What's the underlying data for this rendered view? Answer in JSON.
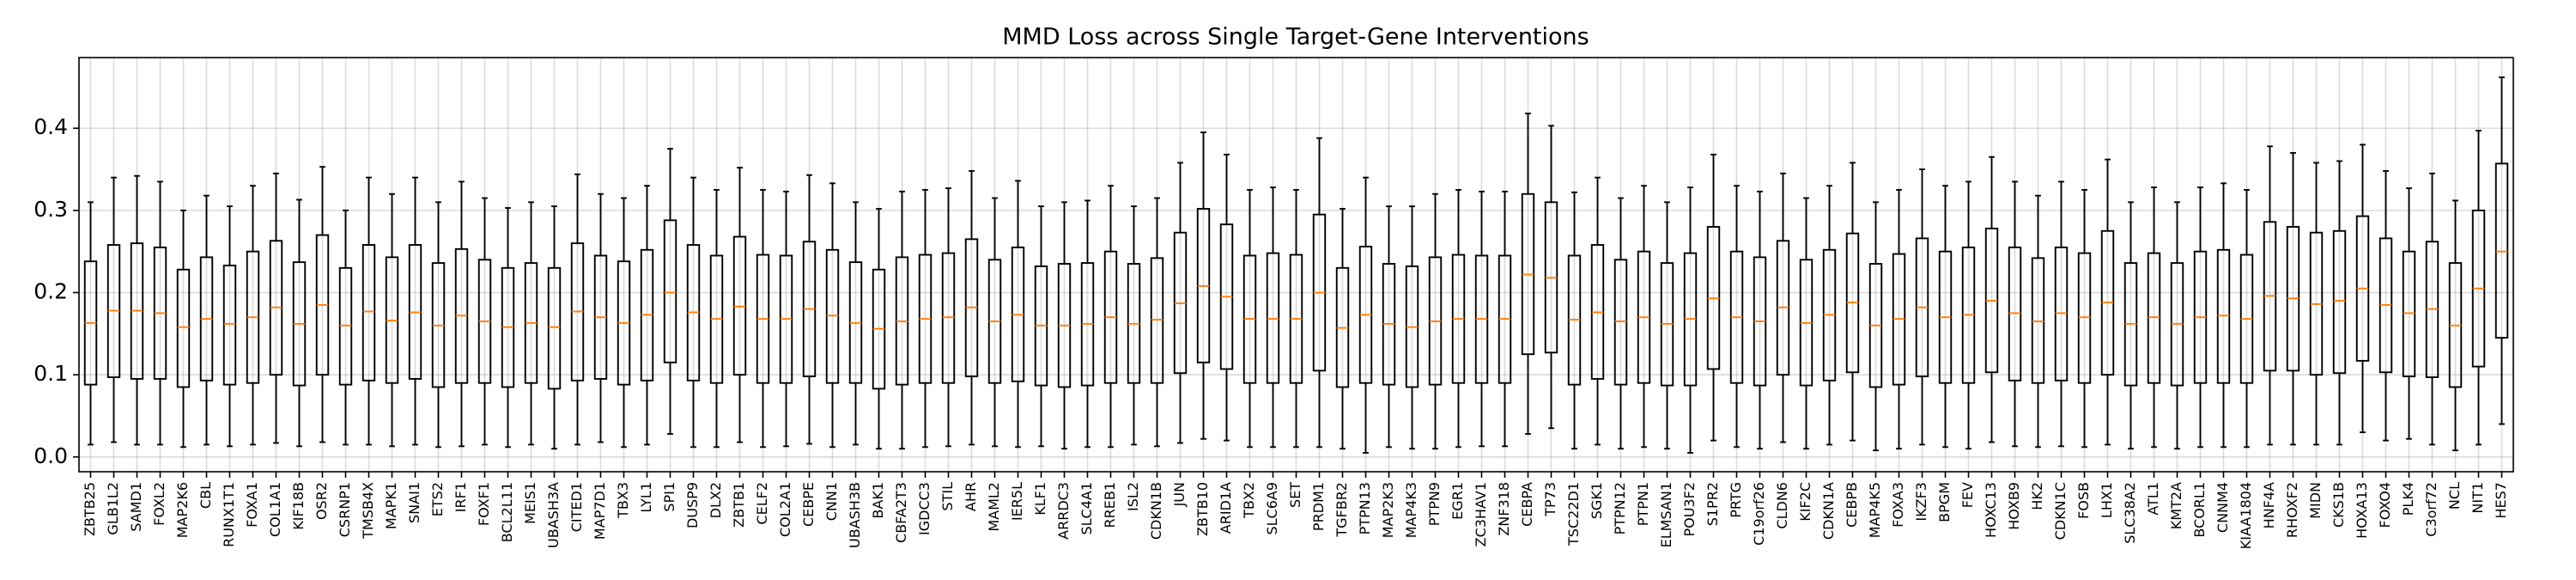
{
  "chart_data": {
    "type": "box",
    "title": "MMD Loss across Single Target-Gene Interventions",
    "categories": [
      "ZBTB25",
      "GLB1L2",
      "SAMD1",
      "FOXL2",
      "MAP2K6",
      "CBL",
      "RUNX1T1",
      "FOXA1",
      "COL1A1",
      "KIF18B",
      "OSR2",
      "CSRNP1",
      "TMSB4X",
      "MAPK1",
      "SNAI1",
      "ETS2",
      "IRF1",
      "FOXF1",
      "BCL2L11",
      "MEIS1",
      "UBASH3A",
      "CITED1",
      "MAP7D1",
      "TBX3",
      "LYL1",
      "SPI1",
      "DUSP9",
      "DLX2",
      "ZBTB1",
      "CELF2",
      "COL2A1",
      "CEBPE",
      "CNN1",
      "UBASH3B",
      "BAK1",
      "CBFA2T3",
      "IGDCC3",
      "STIL",
      "AHR",
      "MAML2",
      "IER5L",
      "KLF1",
      "ARRDC3",
      "SLC4A1",
      "RREB1",
      "ISL2",
      "CDKN1B",
      "JUN",
      "ZBTB10",
      "ARID1A",
      "TBX2",
      "SLC6A9",
      "SET",
      "PRDM1",
      "TGFBR2",
      "PTPN13",
      "MAP2K3",
      "MAP4K3",
      "PTPN9",
      "EGR1",
      "ZC3HAV1",
      "ZNF318",
      "CEBPA",
      "TP73",
      "TSC22D1",
      "SGK1",
      "PTPN12",
      "PTPN1",
      "ELMSAN1",
      "POU3F2",
      "S1PR2",
      "PRTG",
      "C19orf26",
      "CLDN6",
      "KIF2C",
      "CDKN1A",
      "CEBPB",
      "MAP4K5",
      "FOXA3",
      "IKZF3",
      "BPGM",
      "FEV",
      "HOXC13",
      "HOXB9",
      "HK2",
      "CDKN1C",
      "FOSB",
      "LHX1",
      "SLC38A2",
      "ATL1",
      "KMT2A",
      "BCORL1",
      "CNNM4",
      "KIAA1804",
      "HNF4A",
      "RHOXF2",
      "MIDN",
      "CKS1B",
      "HOXA13",
      "FOXO4",
      "PLK4",
      "C3orf72",
      "NCL",
      "NIT1",
      "HES7"
    ],
    "whislo": [
      0.015,
      0.018,
      0.015,
      0.015,
      0.012,
      0.015,
      0.013,
      0.015,
      0.017,
      0.013,
      0.018,
      0.015,
      0.015,
      0.013,
      0.015,
      0.012,
      0.013,
      0.015,
      0.012,
      0.015,
      0.01,
      0.015,
      0.018,
      0.012,
      0.015,
      0.028,
      0.012,
      0.012,
      0.018,
      0.012,
      0.013,
      0.016,
      0.012,
      0.015,
      0.01,
      0.01,
      0.012,
      0.013,
      0.015,
      0.013,
      0.012,
      0.013,
      0.01,
      0.012,
      0.012,
      0.015,
      0.013,
      0.017,
      0.022,
      0.02,
      0.012,
      0.012,
      0.012,
      0.012,
      0.01,
      0.005,
      0.012,
      0.01,
      0.01,
      0.012,
      0.013,
      0.013,
      0.028,
      0.035,
      0.01,
      0.015,
      0.01,
      0.012,
      0.01,
      0.005,
      0.02,
      0.012,
      0.01,
      0.018,
      0.01,
      0.015,
      0.02,
      0.008,
      0.01,
      0.015,
      0.012,
      0.01,
      0.018,
      0.013,
      0.012,
      0.013,
      0.012,
      0.015,
      0.01,
      0.012,
      0.01,
      0.012,
      0.012,
      0.012,
      0.015,
      0.015,
      0.015,
      0.015,
      0.03,
      0.02,
      0.022,
      0.015,
      0.008,
      0.015,
      0.04
    ],
    "q1": [
      0.088,
      0.097,
      0.095,
      0.095,
      0.085,
      0.093,
      0.088,
      0.09,
      0.1,
      0.087,
      0.1,
      0.088,
      0.093,
      0.09,
      0.095,
      0.085,
      0.09,
      0.09,
      0.085,
      0.09,
      0.083,
      0.093,
      0.095,
      0.088,
      0.093,
      0.115,
      0.093,
      0.09,
      0.1,
      0.09,
      0.09,
      0.098,
      0.09,
      0.09,
      0.083,
      0.088,
      0.09,
      0.09,
      0.098,
      0.09,
      0.092,
      0.087,
      0.085,
      0.087,
      0.09,
      0.09,
      0.09,
      0.102,
      0.115,
      0.107,
      0.09,
      0.09,
      0.09,
      0.105,
      0.085,
      0.09,
      0.088,
      0.085,
      0.088,
      0.09,
      0.09,
      0.09,
      0.125,
      0.127,
      0.088,
      0.095,
      0.088,
      0.09,
      0.087,
      0.087,
      0.107,
      0.09,
      0.087,
      0.1,
      0.087,
      0.093,
      0.103,
      0.085,
      0.088,
      0.098,
      0.09,
      0.09,
      0.103,
      0.093,
      0.09,
      0.093,
      0.09,
      0.1,
      0.087,
      0.09,
      0.087,
      0.09,
      0.09,
      0.09,
      0.105,
      0.105,
      0.1,
      0.102,
      0.117,
      0.103,
      0.098,
      0.097,
      0.085,
      0.11,
      0.145
    ],
    "med": [
      0.163,
      0.178,
      0.178,
      0.175,
      0.158,
      0.168,
      0.162,
      0.17,
      0.182,
      0.162,
      0.185,
      0.16,
      0.177,
      0.166,
      0.176,
      0.16,
      0.172,
      0.165,
      0.158,
      0.163,
      0.158,
      0.177,
      0.17,
      0.163,
      0.173,
      0.2,
      0.176,
      0.168,
      0.183,
      0.168,
      0.168,
      0.18,
      0.172,
      0.163,
      0.156,
      0.165,
      0.168,
      0.17,
      0.182,
      0.165,
      0.173,
      0.16,
      0.16,
      0.162,
      0.17,
      0.162,
      0.167,
      0.187,
      0.208,
      0.195,
      0.168,
      0.168,
      0.168,
      0.2,
      0.157,
      0.173,
      0.162,
      0.158,
      0.165,
      0.168,
      0.168,
      0.168,
      0.222,
      0.218,
      0.167,
      0.176,
      0.165,
      0.17,
      0.162,
      0.168,
      0.193,
      0.17,
      0.165,
      0.182,
      0.163,
      0.173,
      0.188,
      0.16,
      0.168,
      0.182,
      0.17,
      0.173,
      0.19,
      0.175,
      0.165,
      0.175,
      0.17,
      0.188,
      0.162,
      0.17,
      0.162,
      0.17,
      0.172,
      0.168,
      0.196,
      0.193,
      0.186,
      0.19,
      0.205,
      0.185,
      0.175,
      0.18,
      0.16,
      0.205,
      0.25
    ],
    "q3": [
      0.238,
      0.258,
      0.26,
      0.255,
      0.228,
      0.243,
      0.233,
      0.25,
      0.263,
      0.237,
      0.27,
      0.23,
      0.258,
      0.243,
      0.258,
      0.236,
      0.253,
      0.24,
      0.23,
      0.236,
      0.23,
      0.26,
      0.245,
      0.238,
      0.252,
      0.288,
      0.258,
      0.245,
      0.268,
      0.246,
      0.245,
      0.262,
      0.252,
      0.237,
      0.228,
      0.243,
      0.246,
      0.248,
      0.265,
      0.24,
      0.255,
      0.232,
      0.235,
      0.236,
      0.25,
      0.235,
      0.242,
      0.273,
      0.302,
      0.283,
      0.245,
      0.248,
      0.246,
      0.295,
      0.23,
      0.256,
      0.235,
      0.232,
      0.243,
      0.246,
      0.245,
      0.245,
      0.32,
      0.31,
      0.245,
      0.258,
      0.24,
      0.25,
      0.236,
      0.248,
      0.28,
      0.25,
      0.243,
      0.263,
      0.24,
      0.252,
      0.272,
      0.235,
      0.247,
      0.266,
      0.25,
      0.255,
      0.278,
      0.255,
      0.242,
      0.255,
      0.248,
      0.275,
      0.236,
      0.248,
      0.236,
      0.25,
      0.252,
      0.246,
      0.286,
      0.28,
      0.273,
      0.275,
      0.293,
      0.266,
      0.25,
      0.262,
      0.236,
      0.3,
      0.357
    ],
    "whishi": [
      0.31,
      0.34,
      0.342,
      0.335,
      0.3,
      0.318,
      0.305,
      0.33,
      0.345,
      0.313,
      0.353,
      0.3,
      0.34,
      0.32,
      0.34,
      0.31,
      0.335,
      0.315,
      0.303,
      0.31,
      0.305,
      0.344,
      0.32,
      0.315,
      0.33,
      0.375,
      0.34,
      0.325,
      0.352,
      0.325,
      0.323,
      0.343,
      0.333,
      0.31,
      0.302,
      0.323,
      0.325,
      0.327,
      0.348,
      0.315,
      0.336,
      0.305,
      0.31,
      0.312,
      0.33,
      0.305,
      0.315,
      0.358,
      0.395,
      0.368,
      0.325,
      0.328,
      0.325,
      0.388,
      0.302,
      0.34,
      0.305,
      0.305,
      0.32,
      0.325,
      0.323,
      0.323,
      0.418,
      0.403,
      0.322,
      0.34,
      0.315,
      0.33,
      0.31,
      0.328,
      0.368,
      0.33,
      0.323,
      0.345,
      0.315,
      0.33,
      0.358,
      0.31,
      0.325,
      0.35,
      0.33,
      0.335,
      0.365,
      0.335,
      0.318,
      0.335,
      0.325,
      0.362,
      0.31,
      0.328,
      0.31,
      0.328,
      0.333,
      0.325,
      0.378,
      0.37,
      0.358,
      0.36,
      0.38,
      0.348,
      0.327,
      0.345,
      0.312,
      0.397,
      0.462
    ],
    "box_color": "#000000",
    "median_color": "#ff7f0e",
    "ylim": [
      -0.018,
      0.486
    ],
    "yticks": [
      {
        "value": 0,
        "label": "0.0"
      },
      0.1,
      0.2,
      0.3,
      0.4
    ],
    "grid": true
  }
}
